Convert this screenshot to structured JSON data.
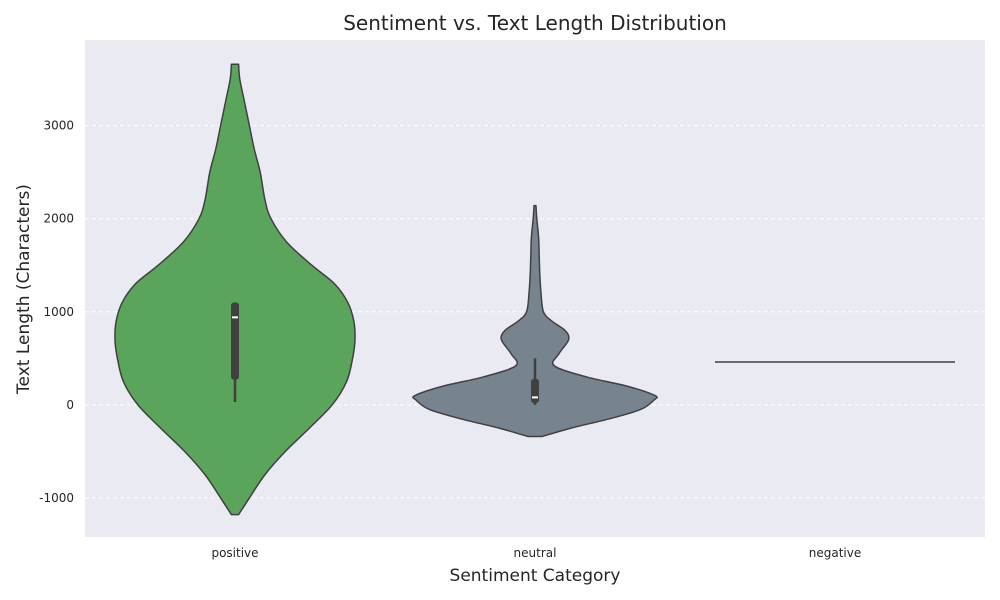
{
  "chart_data": {
    "type": "violin",
    "title": "Sentiment vs. Text Length Distribution",
    "xlabel": "Sentiment Category",
    "ylabel": "Text Length (Characters)",
    "ylim": [
      -1420,
      3920
    ],
    "yticks": [
      -1000,
      0,
      1000,
      2000,
      3000
    ],
    "ytick_labels": [
      "-1000",
      "0",
      "1000",
      "2000",
      "3000"
    ],
    "categories": [
      "positive",
      "neutral",
      "negative"
    ],
    "grid": "y-dashed",
    "background": "#eaeaf2",
    "colors": {
      "positive": "#5aa45b",
      "neutral": "#77838f",
      "negative": "#77838f",
      "outline": "#404040",
      "box": "#404040",
      "median": "#ffffff"
    },
    "violins": [
      {
        "category": "positive",
        "extent": [
          -1180,
          3660
        ],
        "box": {
          "whisker_low": 30,
          "q1": 270,
          "median": 940,
          "q3": 1100,
          "whisker_high": 1100
        },
        "profile": [
          [
            -1180,
            0.03
          ],
          [
            -1000,
            0.12
          ],
          [
            -750,
            0.25
          ],
          [
            -500,
            0.42
          ],
          [
            -250,
            0.62
          ],
          [
            0,
            0.81
          ],
          [
            250,
            0.93
          ],
          [
            500,
            0.98
          ],
          [
            700,
            1.0
          ],
          [
            900,
            0.99
          ],
          [
            1100,
            0.94
          ],
          [
            1300,
            0.83
          ],
          [
            1500,
            0.64
          ],
          [
            1750,
            0.43
          ],
          [
            2000,
            0.3
          ],
          [
            2200,
            0.25
          ],
          [
            2500,
            0.21
          ],
          [
            2750,
            0.16
          ],
          [
            3000,
            0.12
          ],
          [
            3250,
            0.08
          ],
          [
            3500,
            0.04
          ],
          [
            3660,
            0.03
          ]
        ]
      },
      {
        "category": "neutral",
        "extent": [
          -340,
          2140
        ],
        "box": {
          "whisker_low": 0,
          "q1": 20,
          "median": 80,
          "q3": 280,
          "whisker_high": 500
        },
        "profile": [
          [
            -340,
            0.06
          ],
          [
            -250,
            0.3
          ],
          [
            -150,
            0.62
          ],
          [
            -50,
            0.88
          ],
          [
            50,
            0.99
          ],
          [
            100,
            1.0
          ],
          [
            200,
            0.77
          ],
          [
            300,
            0.43
          ],
          [
            420,
            0.16
          ],
          [
            550,
            0.2
          ],
          [
            700,
            0.28
          ],
          [
            800,
            0.25
          ],
          [
            900,
            0.14
          ],
          [
            1000,
            0.07
          ],
          [
            1200,
            0.05
          ],
          [
            1400,
            0.04
          ],
          [
            1600,
            0.035
          ],
          [
            1800,
            0.03
          ],
          [
            2000,
            0.015
          ],
          [
            2140,
            0.008
          ]
        ]
      },
      {
        "category": "negative",
        "single_value": 460
      }
    ]
  }
}
